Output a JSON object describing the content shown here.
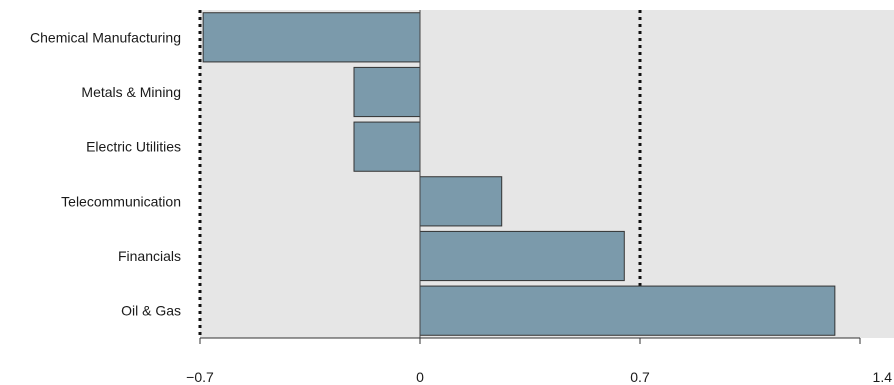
{
  "chart_data": {
    "type": "bar",
    "orientation": "horizontal",
    "categories": [
      "Chemical Manufacturing",
      "Metals & Mining",
      "Electric Utilities",
      "Telecommunication",
      "Financials",
      "Oil & Gas"
    ],
    "values": [
      -0.69,
      -0.21,
      -0.21,
      0.26,
      0.65,
      1.32
    ],
    "xlim": [
      -0.7,
      1.4
    ],
    "xticks": [
      -0.7,
      0,
      0.7,
      1.4
    ],
    "xtick_labels": [
      "−0.7",
      "0",
      "0.7",
      "1.4"
    ],
    "reference_lines": [
      -0.7,
      0,
      0.7
    ],
    "reference_line_style": [
      "dotted",
      "solid",
      "dotted"
    ],
    "title": "",
    "xlabel": "",
    "ylabel": "",
    "grid": false,
    "legend": "none",
    "colors": {
      "bar_fill": "#7b9aab",
      "bar_stroke": "#333333",
      "plot_background": "#e6e6e6",
      "zero_line": "#444444",
      "reference_line": "#111111",
      "axis": "#333333"
    }
  }
}
